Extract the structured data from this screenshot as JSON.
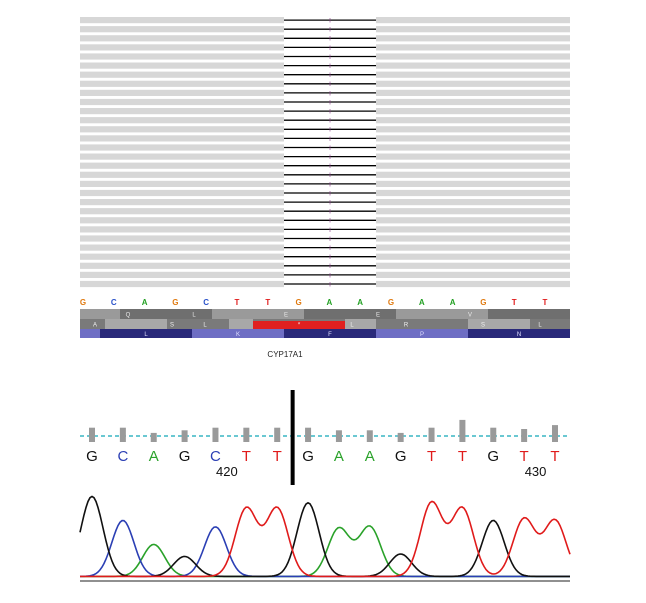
{
  "reads": {
    "count": 30,
    "insert_marker": "I"
  },
  "reference": {
    "bases": [
      "G",
      "C",
      "A",
      "G",
      "C",
      "T",
      "T",
      "G",
      "A",
      "A",
      "G",
      "A",
      "A",
      "G",
      "T",
      "T"
    ]
  },
  "translation": {
    "frame1": [
      "Q",
      "L",
      "E",
      "E",
      "V"
    ],
    "frame2": [
      "A",
      "S",
      "L",
      "*",
      "L",
      "R",
      "S",
      "L"
    ],
    "frame3": [
      "L",
      "K",
      "F",
      "P",
      "N"
    ]
  },
  "gene": {
    "name": "CYP17A1"
  },
  "chromatogram": {
    "bases": [
      "G",
      "C",
      "A",
      "G",
      "C",
      "T",
      "T",
      "G",
      "A",
      "A",
      "G",
      "T",
      "T",
      "G",
      "T",
      "T"
    ],
    "position_labels": [
      {
        "text": "420",
        "after_index": 4
      },
      {
        "text": "430",
        "after_index": 14
      }
    ],
    "quality": [
      0.55,
      0.55,
      0.35,
      0.45,
      0.55,
      0.55,
      0.55,
      0.55,
      0.45,
      0.45,
      0.35,
      0.55,
      0.85,
      0.55,
      0.5,
      0.65
    ]
  },
  "colors": {
    "A": "#2aa22a",
    "C": "#2b3fb4",
    "G": "#111111",
    "T": "#e01b1b",
    "ref_A": "#22a022",
    "ref_C": "#2a52c9",
    "ref_G": "#e07a10",
    "ref_T": "#e01b1b",
    "read": "#d7d7d7",
    "stop": "#e02020",
    "frame_dark": "#29297a",
    "frame_light": "#6e6ec4",
    "dashed_line": "#38b6c4",
    "quality_bar": "#9a9a9a"
  }
}
